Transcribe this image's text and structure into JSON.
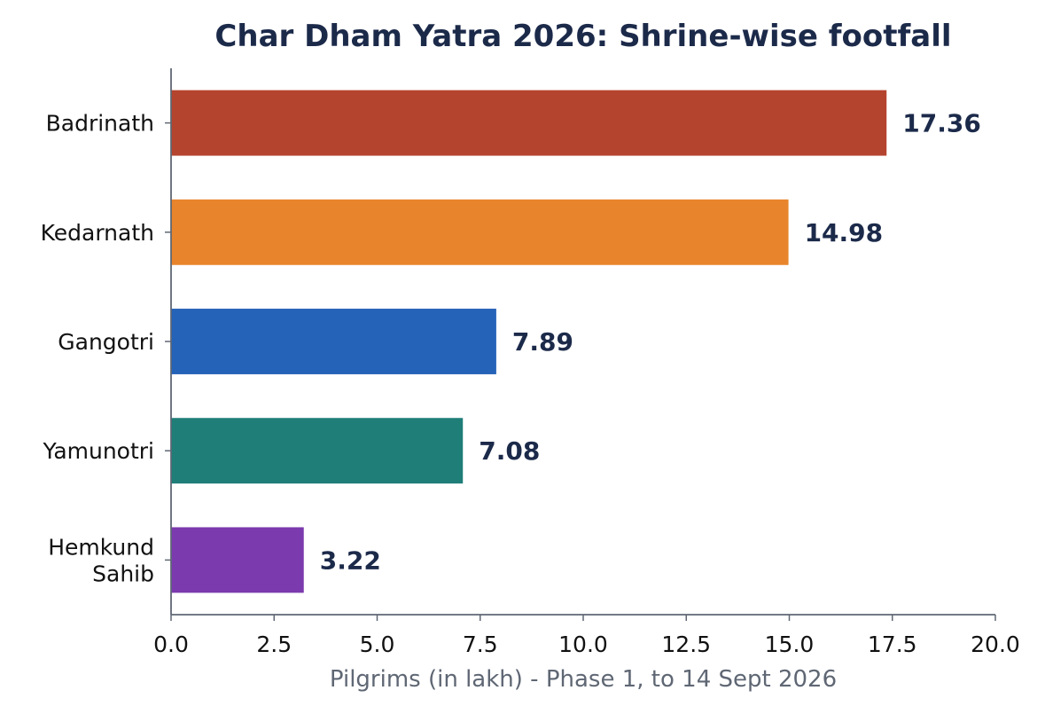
{
  "chart_data": {
    "type": "bar",
    "orientation": "horizontal",
    "title": "Char Dham Yatra 2026: Shrine-wise footfall",
    "xlabel": "Pilgrims (in lakh) - Phase 1, to 14 Sept 2026",
    "ylabel": "",
    "xlim": [
      0,
      20
    ],
    "xticks": [
      0,
      2.5,
      5,
      7.5,
      10,
      12.5,
      15,
      17.5,
      20
    ],
    "xtick_labels": [
      "0.0",
      "2.5",
      "5.0",
      "7.5",
      "10.0",
      "12.5",
      "15.0",
      "17.5",
      "20.0"
    ],
    "categories": [
      "Badrinath",
      "Kedarnath",
      "Gangotri",
      "Yamunotri",
      "Hemkund Sahib"
    ],
    "category_lines": [
      [
        "Badrinath"
      ],
      [
        "Kedarnath"
      ],
      [
        "Gangotri"
      ],
      [
        "Yamunotri"
      ],
      [
        "Hemkund",
        "Sahib"
      ]
    ],
    "values": [
      17.36,
      14.98,
      7.89,
      7.08,
      3.22
    ],
    "value_labels": [
      "17.36",
      "14.98",
      "7.89",
      "7.08",
      "3.22"
    ],
    "colors": [
      "#b5442f",
      "#e8852c",
      "#2563b8",
      "#1f7e78",
      "#7b3aad"
    ],
    "grid": false,
    "legend": "none"
  }
}
